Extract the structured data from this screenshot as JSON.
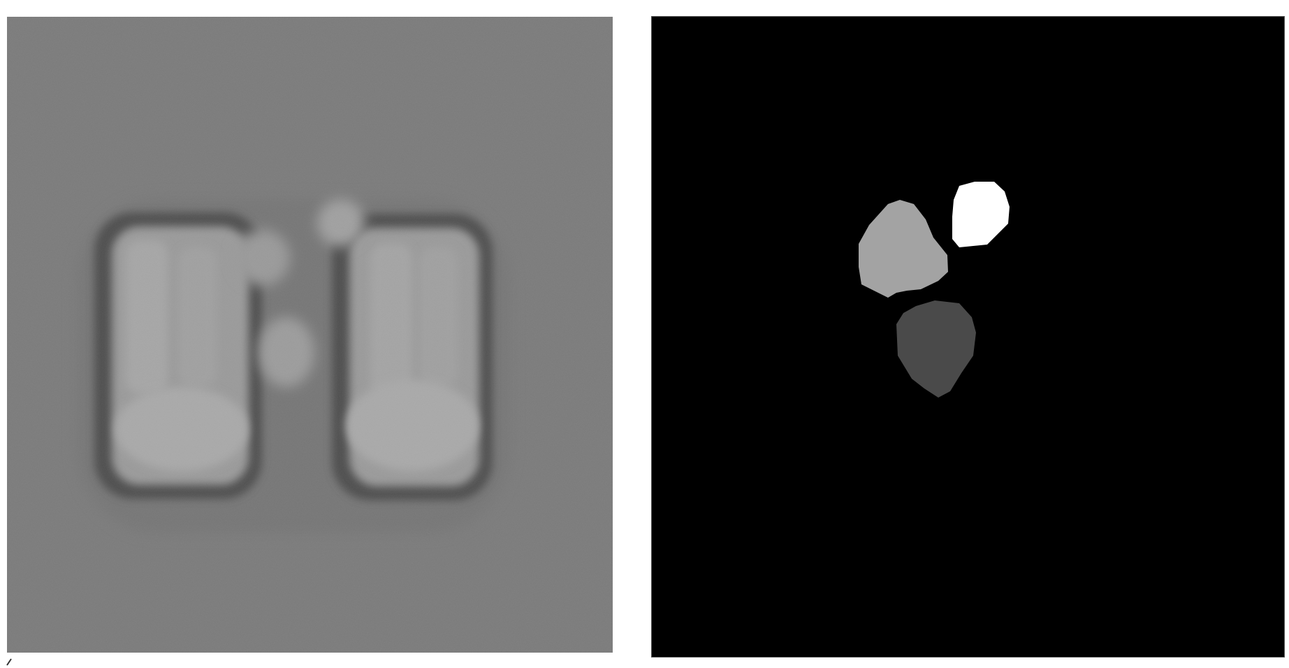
{
  "figure": {
    "left_panel": {
      "kind": "grayscale-microscopy-image",
      "background_color": "#7a7a7a",
      "objects": [
        "left-cell",
        "right-cell",
        "upper-left-droplet",
        "upper-right-droplet",
        "center-droplet"
      ]
    },
    "right_panel": {
      "kind": "segmentation-mask",
      "background_color": "#000000",
      "regions": [
        {
          "name": "mask-region-light-gray",
          "color": "#a3a3a3"
        },
        {
          "name": "mask-region-white",
          "color": "#ffffff"
        },
        {
          "name": "mask-region-dark-gray",
          "color": "#4a4a4a"
        }
      ]
    }
  }
}
